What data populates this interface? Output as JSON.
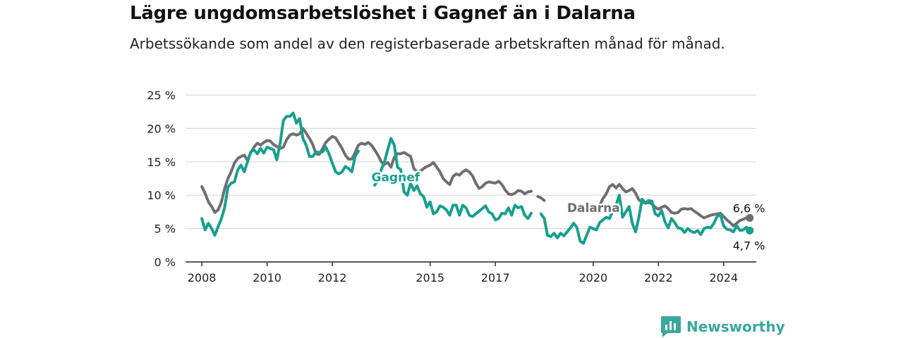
{
  "title": "Lägre ungdomsarbetslöshet i Gagnef än i Dalarna",
  "subtitle": "Arbetssökande som andel av den registerbaserade arbetskraften månad för månad.",
  "brand": "Newsworthy",
  "colors": {
    "gagnef": "#17a08f",
    "dalarna": "#6f6e72",
    "grid": "#d9d9d9",
    "axis": "#222222"
  },
  "chart_data": {
    "type": "line",
    "title": "",
    "xlabel": "",
    "ylabel": "",
    "ylim": [
      0,
      25
    ],
    "xlim": [
      2007.5,
      2025.0
    ],
    "y_ticks": [
      0,
      5,
      10,
      15,
      20,
      25
    ],
    "y_tick_labels": [
      "0 %",
      "5 %",
      "10 %",
      "15 %",
      "20 %",
      "25 %"
    ],
    "x_ticks": [
      2008,
      2010,
      2012,
      2015,
      2017,
      2020,
      2022,
      2024
    ],
    "x_tick_labels": [
      "2008",
      "2010",
      "2012",
      "2015",
      "2017",
      "2020",
      "2022",
      "2024"
    ],
    "grid": "horizontal",
    "series": [
      {
        "name": "Dalarna",
        "end_label": "6,6 %",
        "segments": [
          {
            "x": [
              2008.0,
              2008.1,
              2008.2,
              2008.3,
              2008.4,
              2008.5,
              2008.6,
              2008.7,
              2008.8,
              2008.9,
              2009.0,
              2009.1,
              2009.2,
              2009.3,
              2009.4,
              2009.5,
              2009.6,
              2009.7,
              2009.8,
              2009.9,
              2010.0,
              2010.1,
              2010.2,
              2010.3,
              2010.4,
              2010.5,
              2010.6,
              2010.7,
              2010.8,
              2010.9,
              2011.0,
              2011.1,
              2011.2,
              2011.3,
              2011.4,
              2011.5,
              2011.6,
              2011.7,
              2011.8,
              2011.9,
              2012.0,
              2012.1,
              2012.2,
              2012.3,
              2012.4,
              2012.5,
              2012.6,
              2012.7,
              2012.8,
              2012.9,
              2013.0,
              2013.1,
              2013.2,
              2013.3,
              2013.4,
              2013.5,
              2013.6,
              2013.7,
              2013.8,
              2013.9,
              2014.0,
              2014.1,
              2014.2,
              2014.4,
              2014.5,
              2014.6,
              2014.7,
              2014.8,
              2014.9,
              2015.0,
              2015.1,
              2015.2,
              2015.3,
              2015.4,
              2015.5,
              2015.6,
              2015.7,
              2015.8,
              2015.9,
              2016.0,
              2016.1,
              2016.2,
              2016.3,
              2016.4,
              2016.5,
              2016.6,
              2016.7,
              2016.8,
              2016.9,
              2017.0,
              2017.1,
              2017.2,
              2017.3,
              2017.4,
              2017.5,
              2017.6,
              2017.7,
              2017.8,
              2017.9,
              2018.0,
              2018.1
            ],
            "y": [
              11.3,
              10.3,
              9.0,
              8.3,
              7.4,
              7.8,
              9.0,
              11.0,
              12.5,
              13.5,
              14.8,
              15.5,
              15.8,
              16.0,
              15.2,
              16.4,
              17.2,
              17.8,
              17.5,
              17.9,
              18.2,
              18.1,
              17.6,
              17.3,
              17.0,
              17.2,
              18.3,
              19.0,
              19.2,
              19.0,
              19.2,
              20.0,
              19.3,
              18.5,
              17.6,
              16.2,
              16.1,
              17.0,
              17.9,
              18.4,
              18.8,
              18.6,
              17.8,
              17.0,
              16.0,
              15.4,
              15.4,
              16.4,
              17.5,
              17.8,
              17.6,
              17.9,
              17.5,
              16.8,
              16.0,
              15.0,
              14.6,
              14.9,
              14.2,
              15.7,
              16.2,
              16.2,
              16.4,
              15.8,
              14.0,
              13.5,
              13.6,
              14.0,
              14.3,
              14.5,
              14.9,
              14.2,
              13.5,
              12.5,
              12.0,
              11.6,
              12.8,
              13.2,
              13.0,
              13.5,
              13.8,
              13.5,
              12.9,
              11.8,
              11.0,
              11.3,
              11.8,
              12.0,
              11.9,
              11.8,
              12.1,
              11.6,
              10.8,
              10.2,
              10.1,
              10.3,
              10.7,
              10.6,
              10.2,
              10.5,
              10.6
            ]
          },
          {
            "x": [
              2018.3,
              2018.4,
              2018.5
            ],
            "y": [
              9.8,
              9.6,
              9.2
            ]
          },
          {
            "x": [
              2020.2,
              2020.3,
              2020.4,
              2020.5,
              2020.6,
              2020.7,
              2020.8,
              2020.9,
              2021.0,
              2021.1,
              2021.2,
              2021.3,
              2021.4,
              2021.5,
              2021.6,
              2021.7,
              2021.8,
              2021.9,
              2022.0,
              2022.1,
              2022.2,
              2022.3,
              2022.4,
              2022.5,
              2022.6,
              2022.7,
              2022.8,
              2022.9,
              2023.0,
              2023.1,
              2023.2,
              2023.3,
              2023.4,
              2023.5,
              2023.6,
              2023.7,
              2023.8,
              2023.9,
              2024.0,
              2024.1,
              2024.2,
              2024.3,
              2024.4,
              2024.5,
              2024.6,
              2024.7,
              2024.8
            ],
            "y": [
              8.5,
              9.5,
              10.2,
              11.3,
              11.6,
              11.1,
              11.6,
              11.0,
              10.5,
              10.7,
              11.0,
              10.3,
              9.3,
              9.0,
              8.8,
              8.9,
              8.7,
              8.2,
              7.9,
              8.2,
              8.4,
              8.0,
              7.4,
              7.3,
              7.4,
              7.9,
              8.0,
              7.9,
              8.0,
              7.6,
              7.3,
              6.9,
              6.6,
              6.8,
              7.0,
              7.1,
              7.2,
              7.3,
              6.8,
              6.3,
              5.9,
              5.4,
              5.8,
              6.2,
              6.4,
              6.6,
              6.6
            ]
          }
        ]
      },
      {
        "name": "Gagnef",
        "end_label": "4,7 %",
        "segments": [
          {
            "x": [
              2008.0,
              2008.1,
              2008.2,
              2008.3,
              2008.4,
              2008.5,
              2008.6,
              2008.7,
              2008.8,
              2008.9,
              2009.0,
              2009.1,
              2009.2,
              2009.3,
              2009.4,
              2009.5,
              2009.6,
              2009.7,
              2009.8,
              2009.9,
              2010.0,
              2010.1,
              2010.2,
              2010.3,
              2010.4,
              2010.5,
              2010.6,
              2010.7,
              2010.8,
              2010.9,
              2011.0,
              2011.1,
              2011.2,
              2011.3,
              2011.4,
              2011.5,
              2011.6,
              2011.7,
              2011.8,
              2011.9,
              2012.0,
              2012.1,
              2012.2,
              2012.3,
              2012.4,
              2012.5,
              2012.6,
              2012.7,
              2012.8
            ],
            "y": [
              6.5,
              4.8,
              5.8,
              5.0,
              4.0,
              5.3,
              6.5,
              8.2,
              11.2,
              11.8,
              12.0,
              13.8,
              14.5,
              13.5,
              15.0,
              16.5,
              16.8,
              16.2,
              17.0,
              16.3,
              17.2,
              17.0,
              16.8,
              15.3,
              17.8,
              21.2,
              21.8,
              21.8,
              22.3,
              20.8,
              21.5,
              18.5,
              17.5,
              15.8,
              15.8,
              16.5,
              16.4,
              16.5,
              17.2,
              16.2,
              14.8,
              13.5,
              13.2,
              13.5,
              14.3,
              14.0,
              13.5,
              15.8,
              16.6
            ]
          },
          {
            "x": [
              2013.3,
              2013.4,
              2013.5,
              2013.6,
              2013.7,
              2013.8,
              2013.9,
              2014.0,
              2014.1,
              2014.2,
              2014.3,
              2014.4,
              2014.5,
              2014.6,
              2014.7,
              2014.8,
              2014.9,
              2015.0,
              2015.1,
              2015.2,
              2015.3,
              2015.4,
              2015.5,
              2015.6,
              2015.7,
              2015.8,
              2015.9,
              2016.0,
              2016.1,
              2016.2,
              2016.3,
              2016.4,
              2016.5,
              2016.6,
              2016.7,
              2016.8,
              2016.9,
              2017.0,
              2017.1,
              2017.2,
              2017.3,
              2017.4,
              2017.5,
              2017.6,
              2017.7,
              2017.8,
              2017.9,
              2018.0,
              2018.1
            ],
            "y": [
              11.5,
              12.2,
              13.8,
              15.0,
              16.8,
              18.5,
              17.5,
              14.2,
              13.8,
              10.5,
              10.0,
              11.8,
              10.7,
              11.4,
              10.2,
              9.8,
              8.2,
              9.0,
              7.2,
              7.5,
              8.4,
              8.2,
              7.8,
              7.0,
              8.5,
              8.5,
              7.0,
              8.5,
              8.1,
              7.0,
              6.8,
              7.2,
              7.6,
              8.0,
              8.4,
              7.5,
              7.2,
              6.3,
              6.5,
              7.3,
              7.2,
              8.1,
              7.0,
              8.5,
              8.1,
              8.3,
              7.0,
              6.5,
              7.3
            ]
          },
          {
            "x": [
              2018.4,
              2018.5,
              2018.6,
              2018.7,
              2018.8,
              2018.9,
              2019.0,
              2019.1,
              2019.2,
              2019.3,
              2019.4,
              2019.5,
              2019.6,
              2019.7,
              2019.8,
              2019.9,
              2020.0,
              2020.1,
              2020.2,
              2020.3,
              2020.4,
              2020.5,
              2020.6,
              2020.7,
              2020.8,
              2020.9,
              2021.0,
              2021.1,
              2021.2,
              2021.3,
              2021.4,
              2021.5,
              2021.6,
              2021.7,
              2021.8,
              2021.9,
              2022.0,
              2022.1,
              2022.2,
              2022.3,
              2022.4,
              2022.5,
              2022.6,
              2022.7,
              2022.8,
              2022.9,
              2023.0,
              2023.1,
              2023.2,
              2023.3,
              2023.4,
              2023.5,
              2023.6,
              2023.7,
              2023.8,
              2023.9,
              2024.0,
              2024.1,
              2024.2,
              2024.3,
              2024.4,
              2024.5,
              2024.6,
              2024.7,
              2024.8
            ],
            "y": [
              7.2,
              6.5,
              4.0,
              3.8,
              4.3,
              3.6,
              4.3,
              3.9,
              4.5,
              5.1,
              5.8,
              5.2,
              3.1,
              2.8,
              4.0,
              5.2,
              5.0,
              4.8,
              5.9,
              6.3,
              6.7,
              6.5,
              7.6,
              8.5,
              10.0,
              6.7,
              7.5,
              8.3,
              5.8,
              4.5,
              6.7,
              9.4,
              8.8,
              9.2,
              9.1,
              7.2,
              6.9,
              7.7,
              6.0,
              5.1,
              6.5,
              5.9,
              5.1,
              5.0,
              4.4,
              5.0,
              4.6,
              4.4,
              4.7,
              4.1,
              5.0,
              5.2,
              5.1,
              5.8,
              6.8,
              7.1,
              5.4,
              4.9,
              4.8,
              4.5,
              5.4,
              4.7,
              4.8,
              5.2,
              4.7
            ]
          }
        ]
      }
    ],
    "annotations": [
      {
        "text": "Gagnef",
        "series": "Gagnef",
        "x": 2013.2,
        "y": 12.7
      },
      {
        "text": "Dalarna",
        "series": "Dalarna",
        "x": 2019.2,
        "y": 8.1
      }
    ]
  }
}
